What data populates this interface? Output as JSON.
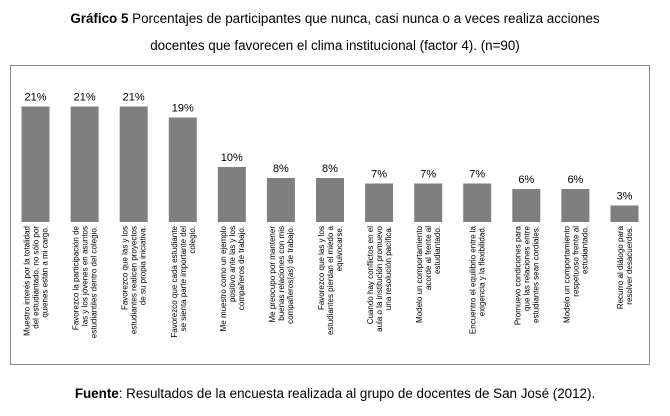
{
  "title": {
    "prefix": "Gráfico 5",
    "line1": " Porcentajes de participantes que nunca, casi nunca o a veces realiza acciones",
    "line2": "docentes que favorecen el clima institucional (factor 4). (n=90)"
  },
  "source": {
    "prefix": "Fuente",
    "text": ": Resultados de la encuesta realizada al grupo de docentes de San José (2012)."
  },
  "chart_data": {
    "type": "bar",
    "ylim": [
      0,
      24
    ],
    "grid": false,
    "legend": "none",
    "bar_color": "#7f7f7f",
    "values": [
      21,
      21,
      21,
      19,
      10,
      8,
      8,
      7,
      7,
      7,
      6,
      6,
      3
    ],
    "data_labels": [
      "21%",
      "21%",
      "21%",
      "19%",
      "10%",
      "8%",
      "8%",
      "7%",
      "7%",
      "7%",
      "6%",
      "6%",
      "3%"
    ],
    "categories": [
      [
        "Muestro interés por la totalidad",
        "del estudiantado, no sólo por",
        "quienes están a mi cargo."
      ],
      [
        "Favorezco la participación de",
        "las y los jóvenes en asuntos",
        "estudiantiles dentro del colegio."
      ],
      [
        "Favorezco que las y los",
        "estudiantes realicen proyectos",
        "de su propia iniciativa."
      ],
      [
        "Favorezco que cada estudiante",
        "se sienta parte importante del",
        "colegio."
      ],
      [
        "Me muestro como un ejemplo",
        "positivo ante las y los",
        "compañeros de trabajo."
      ],
      [
        "Me preocupo por mantener",
        "buenas relaciones con mis",
        "compañeros(as) de trabajo."
      ],
      [
        "Favorezco que las y los",
        "estudiantes pierdan el miedo a",
        "equivocarse."
      ],
      [
        "Cuando hay conflictos en el",
        "aula o la institución promuevo",
        "una resolución pacífica."
      ],
      [
        "Modelo un comportamiento",
        "acorde al frente al",
        "estudiantado."
      ],
      [
        "Encuentro el equilibrio entre la",
        "exigencia y la flexibilidad."
      ],
      [
        "Promuevo condiciones para",
        "que las relaciones entre",
        "estudiantes sean cordiales."
      ],
      [
        "Modelo un comportamiento",
        "respetuoso frente al",
        "estudiantado."
      ],
      [
        "Recurro al diálogo para",
        "resolver desacuerdos."
      ]
    ]
  }
}
